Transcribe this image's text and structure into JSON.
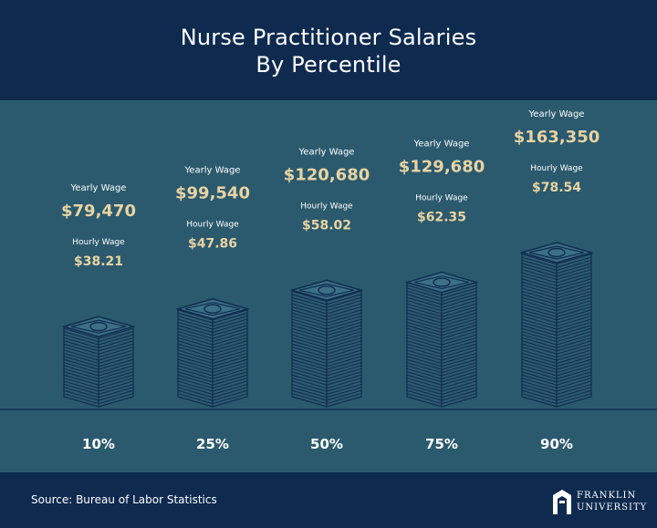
{
  "title_line1": "Nurse Practitioner Salaries",
  "title_line2": "By Percentile",
  "source": "Source: Bureau of Labor Statistics",
  "logo": {
    "line1": "FRANKLIN",
    "line2": "UNIVERSITY"
  },
  "colors": {
    "navy": "#0e2a4f",
    "teal": "#2b5a6e",
    "gold": "#e8d3a3",
    "white": "#ffffff",
    "stack_fill": "#2e5c72",
    "stack_line": "#0f2d4f"
  },
  "chart_data": {
    "type": "bar",
    "categories": [
      "10%",
      "25%",
      "50%",
      "75%",
      "90%"
    ],
    "yearly_label": "Yearly Wage",
    "hourly_label": "Hourly Wage",
    "series": [
      {
        "name": "Yearly Wage",
        "values": [
          79470,
          99540,
          120680,
          129680,
          163350
        ],
        "labels": [
          "$79,470",
          "$99,540",
          "$120,680",
          "$129,680",
          "$163,350"
        ]
      },
      {
        "name": "Hourly Wage",
        "values": [
          38.21,
          47.86,
          58.02,
          62.35,
          78.54
        ],
        "labels": [
          "$38.21",
          "$47.86",
          "$58.02",
          "$62.35",
          "$78.54"
        ]
      }
    ]
  }
}
